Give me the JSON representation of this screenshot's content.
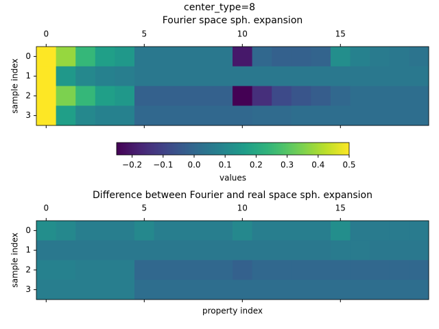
{
  "title": "center_type=8",
  "chart_data": [
    {
      "type": "heatmap",
      "title": "Fourier space sph. expansion",
      "ylabel": "sample index",
      "xlim": [
        -0.5,
        19.5
      ],
      "ylim": [
        -0.5,
        3.5
      ],
      "xticks": [
        0,
        5,
        10,
        15
      ],
      "yticks": [
        0,
        1,
        2,
        3
      ],
      "colormap": "viridis",
      "vlim": [
        -0.25,
        0.5
      ],
      "z": [
        [
          0.5,
          0.38,
          0.25,
          0.17,
          0.15,
          0.05,
          0.05,
          0.05,
          0.05,
          0.05,
          -0.2,
          0.0,
          -0.02,
          -0.02,
          -0.01,
          0.12,
          0.08,
          0.06,
          0.05,
          0.04
        ],
        [
          0.5,
          0.15,
          0.1,
          0.08,
          0.07,
          0.05,
          0.05,
          0.05,
          0.05,
          0.05,
          0.05,
          0.05,
          0.05,
          0.05,
          0.05,
          0.05,
          0.05,
          0.05,
          0.05,
          0.05
        ],
        [
          0.5,
          0.35,
          0.25,
          0.17,
          0.15,
          -0.02,
          -0.02,
          -0.02,
          -0.02,
          -0.02,
          -0.25,
          -0.15,
          -0.08,
          -0.05,
          -0.03,
          0.0,
          0.02,
          0.02,
          0.02,
          0.02
        ],
        [
          0.5,
          0.17,
          0.1,
          0.08,
          0.08,
          0.0,
          0.0,
          0.0,
          0.0,
          0.0,
          0.0,
          0.01,
          0.01,
          0.02,
          0.02,
          0.02,
          0.02,
          0.02,
          0.02,
          0.02
        ]
      ],
      "colorbar": {
        "label": "values",
        "lim": [
          -0.25,
          0.5
        ],
        "ticks": [
          {
            "value": -0.2,
            "label": "−0.2"
          },
          {
            "value": -0.1,
            "label": "−0.1"
          },
          {
            "value": 0,
            "label": "0.0"
          },
          0.1,
          0.2,
          0.3,
          0.4,
          0.5
        ]
      }
    },
    {
      "type": "heatmap",
      "title": "Difference between Fourier and real space sph. expansion",
      "ylabel": "sample index",
      "xlabel": "property index",
      "xlim": [
        -0.5,
        19.5
      ],
      "ylim": [
        -0.5,
        3.5
      ],
      "xticks": [
        0,
        5,
        10,
        15
      ],
      "yticks": [
        0,
        1,
        2,
        3
      ],
      "colormap": "viridis",
      "vlim": [
        -0.25,
        0.5
      ],
      "z": [
        [
          0.12,
          0.1,
          0.07,
          0.07,
          0.07,
          0.1,
          0.07,
          0.07,
          0.07,
          0.07,
          0.1,
          0.07,
          0.07,
          0.07,
          0.07,
          0.12,
          0.06,
          0.06,
          0.06,
          0.06
        ],
        [
          0.05,
          0.05,
          0.05,
          0.05,
          0.05,
          0.05,
          0.05,
          0.05,
          0.05,
          0.05,
          0.05,
          0.05,
          0.05,
          0.05,
          0.05,
          0.06,
          0.06,
          0.05,
          0.05,
          0.05
        ],
        [
          0.08,
          0.08,
          0.07,
          0.07,
          0.07,
          0.0,
          0.0,
          0.0,
          0.0,
          0.0,
          -0.02,
          0.0,
          0.0,
          0.0,
          0.0,
          0.0,
          0.0,
          0.0,
          0.0,
          0.0
        ],
        [
          0.07,
          0.07,
          0.07,
          0.07,
          0.07,
          0.02,
          0.02,
          0.02,
          0.02,
          0.02,
          0.02,
          0.02,
          0.02,
          0.02,
          0.02,
          0.02,
          0.02,
          0.02,
          0.02,
          0.02
        ]
      ]
    }
  ]
}
